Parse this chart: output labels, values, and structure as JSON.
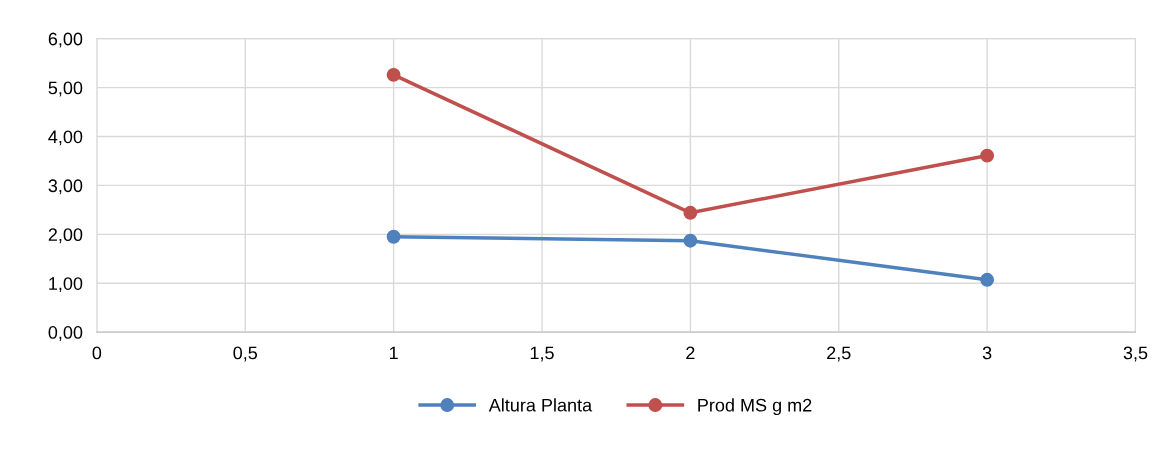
{
  "chart_data": {
    "type": "line",
    "marker": "circle",
    "line_style": "solid",
    "grid": true,
    "legend": "bottom",
    "xlim": [
      0,
      3.5
    ],
    "xticks": [
      0,
      {
        "value": 0.5,
        "label": "0,5"
      },
      1,
      {
        "value": 1.5,
        "label": "1,5"
      },
      2,
      {
        "value": 2.5,
        "label": "2,5"
      },
      3,
      {
        "value": 3.5,
        "label": "3,5"
      }
    ],
    "ylim": [
      0,
      6
    ],
    "yticks": [
      {
        "value": 0,
        "label": "0,00"
      },
      {
        "value": 1,
        "label": "1,00"
      },
      {
        "value": 2,
        "label": "2,00"
      },
      {
        "value": 3,
        "label": "3,00"
      },
      {
        "value": 4,
        "label": "4,00"
      },
      {
        "value": 5,
        "label": "5,00"
      },
      {
        "value": 6,
        "label": "6,00"
      }
    ],
    "x": [
      1,
      2,
      3
    ],
    "series": [
      {
        "name": "Altura Planta",
        "color": "#4f81bd",
        "values": [
          1.95,
          1.87,
          1.07
        ]
      },
      {
        "name": "Prod MS g m2",
        "color": "#c0504d",
        "values": [
          5.26,
          2.44,
          3.61
        ]
      }
    ]
  }
}
